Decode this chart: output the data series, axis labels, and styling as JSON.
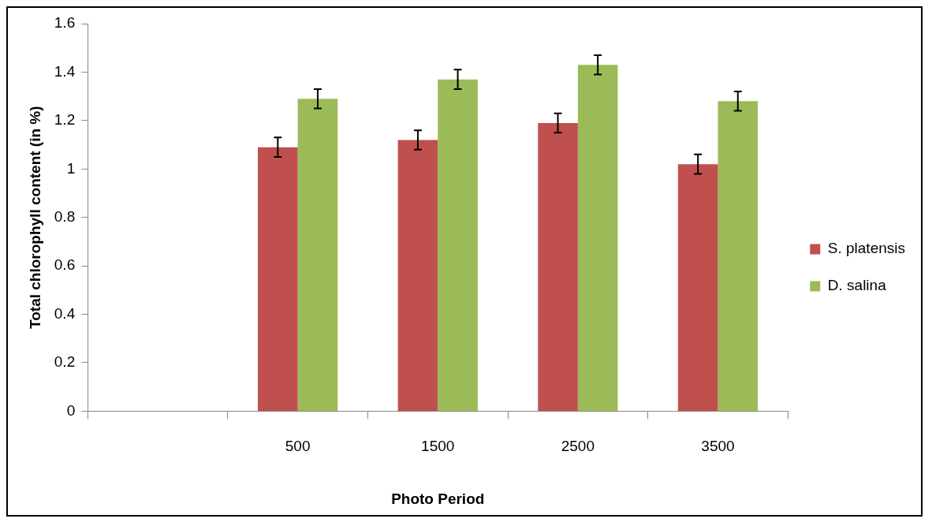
{
  "chart_data": {
    "type": "bar",
    "xlabel": "Photo Period",
    "ylabel": "Total chlorophyll content (in %)",
    "categories": [
      null,
      "500",
      "1500",
      "2500",
      "3500"
    ],
    "series": [
      {
        "name": "S. platensis",
        "color": "#c0504d",
        "values": [
          null,
          1.09,
          1.12,
          1.19,
          1.02
        ],
        "errors": [
          null,
          0.04,
          0.04,
          0.04,
          0.04
        ]
      },
      {
        "name": "D. salina",
        "color": "#9bbb59",
        "values": [
          null,
          1.29,
          1.37,
          1.43,
          1.28
        ],
        "errors": [
          null,
          0.04,
          0.04,
          0.04,
          0.04
        ]
      }
    ],
    "ylim": [
      0,
      1.6
    ],
    "yticks": [
      0,
      0.2,
      0.4,
      0.6,
      0.8,
      1,
      1.2,
      1.4,
      1.6
    ],
    "grid": false,
    "legend": "right"
  }
}
